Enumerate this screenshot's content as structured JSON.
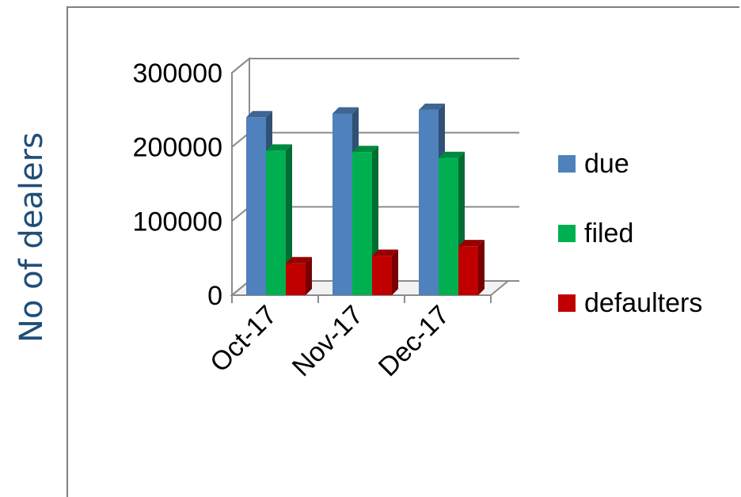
{
  "chart_data": {
    "type": "bar",
    "ylabel": "No of dealers",
    "categories": [
      "Oct-17",
      "Nov-17",
      "Dec-17"
    ],
    "series": [
      {
        "name": "due",
        "values": [
          240000,
          245000,
          250000
        ],
        "color": "#4f81bd"
      },
      {
        "name": "filed",
        "values": [
          195000,
          193000,
          185000
        ],
        "color": "#00b050"
      },
      {
        "name": "defaulters",
        "values": [
          43000,
          53000,
          66000
        ],
        "color": "#c00000"
      }
    ],
    "yticks": [
      "0",
      "100000",
      "200000",
      "300000"
    ],
    "ylim": [
      0,
      300000
    ],
    "grid": true,
    "legend_position": "right",
    "three_d": true
  }
}
